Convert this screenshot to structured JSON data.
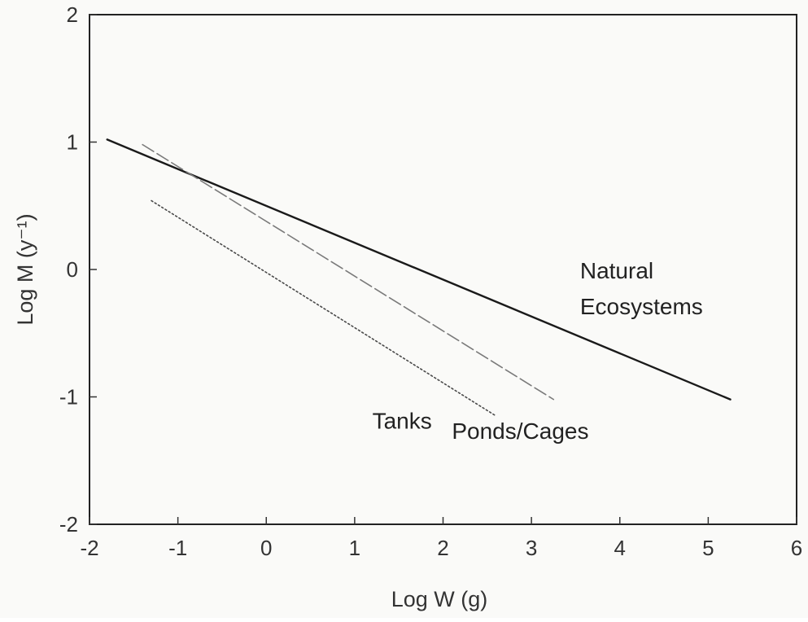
{
  "chart_data": {
    "type": "line",
    "xlabel": "Log W   (g)",
    "ylabel": "Log M   (y⁻¹)",
    "xlim": [
      -2,
      6
    ],
    "ylim": [
      -2,
      2
    ],
    "x_ticks": [
      "-2",
      "-1",
      "0",
      "1",
      "2",
      "3",
      "4",
      "5",
      "6"
    ],
    "y_ticks": [
      "-2",
      "-1",
      "0",
      "1",
      "2"
    ],
    "grid": false,
    "legend": "none",
    "series": [
      {
        "name": "Natural Ecosystems",
        "x": [
          -1.8,
          5.25
        ],
        "y": [
          1.02,
          -1.02
        ],
        "color": "#1a1a1a",
        "style": "solid"
      },
      {
        "name": "Ponds/Cages",
        "x": [
          -1.4,
          3.25
        ],
        "y": [
          0.98,
          -1.02
        ],
        "color": "#7a7a7a",
        "style": "dashed"
      },
      {
        "name": "Tanks",
        "x": [
          -1.3,
          2.6
        ],
        "y": [
          0.54,
          -1.15
        ],
        "color": "#4a4a4a",
        "style": "dotted"
      }
    ],
    "annotations": [
      {
        "text": "Natural",
        "x": 3.55,
        "y": -0.07
      },
      {
        "text": "Ecosystems",
        "x": 3.55,
        "y": -0.35
      },
      {
        "text": "Tanks",
        "x": 1.2,
        "y": -1.25
      },
      {
        "text": "Ponds/Cages",
        "x": 2.1,
        "y": -1.33
      }
    ]
  }
}
